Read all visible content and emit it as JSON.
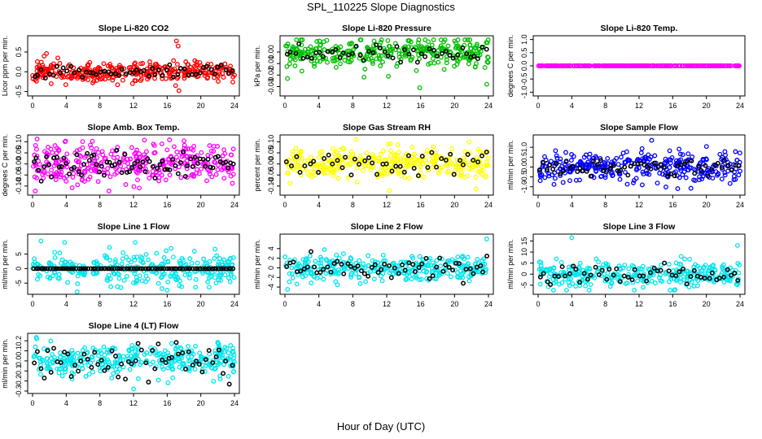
{
  "figure": {
    "title": "SPL_110225  Slope Diagnostics",
    "xlabel": "Hour of Day (UTC)"
  },
  "chart_data": [
    {
      "id": "co2",
      "type": "scatter",
      "title": "Slope Li-820 CO2",
      "ylabel": "Licor ppm per min.",
      "xlim": [
        0,
        24
      ],
      "ylim": [
        -0.55,
        0.85
      ],
      "xticks": [
        0,
        4,
        8,
        12,
        16,
        20,
        24
      ],
      "yticks": [
        -0.5,
        0,
        0.5
      ],
      "ytick_labels": [
        "-0.5",
        "0.0",
        "0.5"
      ],
      "color": "#ff0000",
      "spread": 0.13,
      "secondary_spread": 0.08,
      "dense_n": 330,
      "secondary_n": 55,
      "secondary_color": "#000000",
      "seed": 11,
      "outliers": [
        {
          "x": 17.1,
          "y": 0.78
        },
        {
          "x": 17.3,
          "y": 0.65
        },
        {
          "x": 17.0,
          "y": -0.35
        },
        {
          "x": 17.4,
          "y": -0.48
        },
        {
          "x": 3.0,
          "y": 0.35
        }
      ]
    },
    {
      "id": "pressure",
      "type": "scatter",
      "title": "Slope Li-820 Pressure",
      "ylabel": "kPa per min.",
      "xlim": [
        0,
        24
      ],
      "ylim": [
        -0.036,
        0.012
      ],
      "xticks": [
        0,
        4,
        8,
        12,
        16,
        20,
        24
      ],
      "yticks": [
        -0.03,
        -0.02,
        -0.01,
        0.0
      ],
      "ytick_labels": [
        "-0.03",
        "-0.02",
        "-0.01",
        "0.00"
      ],
      "color": "#00c000",
      "center": 0.0,
      "spread": 0.006,
      "secondary_spread": 0.004,
      "dense_n": 330,
      "secondary_n": 50,
      "secondary_color": "#000000",
      "seed": 23,
      "outliers": [
        {
          "x": 0.3,
          "y": -0.023
        },
        {
          "x": 12.2,
          "y": -0.021
        },
        {
          "x": 15.9,
          "y": -0.031
        },
        {
          "x": 23.8,
          "y": -0.028
        }
      ]
    },
    {
      "id": "temp",
      "type": "scatter",
      "title": "Slope Li-820 Temp.",
      "ylabel": "degrees C per min.",
      "xlim": [
        0,
        24
      ],
      "ylim": [
        -1.05,
        1.05
      ],
      "xticks": [
        0,
        4,
        8,
        12,
        16,
        20,
        24
      ],
      "yticks": [
        -1,
        -0.5,
        0,
        0.5,
        1
      ],
      "ytick_labels": [
        "-1.0",
        "-0.5",
        "0.0",
        "0.5",
        "1.0"
      ],
      "color": "#ff00ff",
      "spread": 0.0,
      "secondary_spread": 0.0,
      "dense_n": 300,
      "secondary_n": 0,
      "secondary_color": "#000000",
      "seed": 5,
      "outliers": []
    },
    {
      "id": "ambbox",
      "type": "scatter",
      "title": "Slope Amb. Box Temp.",
      "ylabel": "degrees C per min.",
      "xlim": [
        0,
        24
      ],
      "ylim": [
        -0.13,
        0.12
      ],
      "xticks": [
        0,
        4,
        8,
        12,
        16,
        20,
        24
      ],
      "yticks": [
        -0.1,
        -0.05,
        0,
        0.05,
        0.1
      ],
      "ytick_labels": [
        "-0.10",
        "-0.05",
        "0.00",
        "0.05",
        "0.10"
      ],
      "color": "#ff00ff",
      "spread": 0.048,
      "secondary_spread": 0.03,
      "dense_n": 340,
      "secondary_n": 80,
      "secondary_color": "#000000",
      "seed": 31,
      "outliers": []
    },
    {
      "id": "rh",
      "type": "scatter",
      "title": "Slope Gas Stream RH",
      "ylabel": "percent per min.",
      "xlim": [
        0,
        24
      ],
      "ylim": [
        -0.13,
        0.12
      ],
      "xticks": [
        0,
        4,
        8,
        12,
        16,
        20,
        24
      ],
      "yticks": [
        -0.1,
        -0.05,
        0,
        0.05,
        0.1
      ],
      "ytick_labels": [
        "-0.10",
        "-0.05",
        "0.00",
        "0.05",
        "0.10"
      ],
      "color": "#ffff00",
      "spread": 0.035,
      "secondary_spread": 0.03,
      "dense_n": 340,
      "secondary_n": 45,
      "secondary_color": "#000000",
      "seed": 41,
      "outliers": [
        {
          "x": 12.3,
          "y": -0.12
        },
        {
          "x": 8.4,
          "y": 0.11
        }
      ]
    },
    {
      "id": "sampleflow",
      "type": "scatter",
      "title": "Slope Sample Flow",
      "ylabel": "ml/min per min.",
      "xlim": [
        0,
        24
      ],
      "ylim": [
        -1.3,
        1.5
      ],
      "xticks": [
        0,
        4,
        8,
        12,
        16,
        20,
        24
      ],
      "yticks": [
        -1,
        -0.5,
        0,
        0.5,
        1
      ],
      "ytick_labels": [
        "-1.0",
        "-0.5",
        "0.0",
        "0.5",
        "1.0"
      ],
      "color": "#0000ff",
      "spread": 0.38,
      "secondary_spread": 0.25,
      "dense_n": 330,
      "secondary_n": 60,
      "secondary_color": "#000000",
      "seed": 53,
      "outliers": [
        {
          "x": 13.5,
          "y": 1.35
        },
        {
          "x": 16.6,
          "y": -1.1
        }
      ]
    },
    {
      "id": "line1",
      "type": "scatter",
      "title": "Slope Line 1 Flow",
      "ylabel": "ml/min per min.",
      "xlim": [
        0,
        24
      ],
      "ylim": [
        -8,
        11
      ],
      "xticks": [
        0,
        4,
        8,
        12,
        16,
        20,
        24
      ],
      "yticks": [
        -5,
        0,
        5
      ],
      "ytick_labels": [
        "-5",
        "0",
        "5"
      ],
      "color": "#00e5ee",
      "spread": 2.8,
      "secondary_spread": 0.0,
      "dense_n": 300,
      "secondary_n": 85,
      "secondary_color": "#000000",
      "seed": 61,
      "outliers": [
        {
          "x": 1.0,
          "y": 9.5
        },
        {
          "x": 3.8,
          "y": 9.0
        },
        {
          "x": 5.3,
          "y": -8.0
        },
        {
          "x": 12.2,
          "y": 9.0
        }
      ]
    },
    {
      "id": "line2",
      "type": "scatter",
      "title": "Slope Line 2 Flow",
      "ylabel": "ml/min per min.",
      "xlim": [
        0,
        24
      ],
      "ylim": [
        -5,
        6.5
      ],
      "xticks": [
        0,
        4,
        8,
        12,
        16,
        20,
        24
      ],
      "yticks": [
        -4,
        -2,
        0,
        2,
        4
      ],
      "ytick_labels": [
        "-4",
        "-2",
        "0",
        "2",
        "4"
      ],
      "color": "#00e5ee",
      "spread": 1.3,
      "secondary_spread": 1.4,
      "dense_n": 320,
      "secondary_n": 60,
      "secondary_color": "#000000",
      "seed": 71,
      "outliers": [
        {
          "x": 23.8,
          "y": 6.0
        },
        {
          "x": 0.3,
          "y": -4.5
        }
      ]
    },
    {
      "id": "line3",
      "type": "scatter",
      "title": "Slope Line 3 Flow",
      "ylabel": "ml/min per min.",
      "xlim": [
        0,
        24
      ],
      "ylim": [
        -8,
        17
      ],
      "xticks": [
        0,
        4,
        8,
        12,
        16,
        20,
        24
      ],
      "yticks": [
        -5,
        0,
        5,
        10,
        15
      ],
      "ytick_labels": [
        "-5",
        "0",
        "5",
        "10",
        "15"
      ],
      "color": "#00e5ee",
      "spread": 2.8,
      "secondary_spread": 2.5,
      "dense_n": 320,
      "secondary_n": 55,
      "secondary_color": "#000000",
      "seed": 83,
      "outliers": [
        {
          "x": 4.0,
          "y": 16.5
        },
        {
          "x": 23.7,
          "y": 13.0
        },
        {
          "x": 16.3,
          "y": -7.0
        }
      ]
    },
    {
      "id": "line4",
      "type": "scatter",
      "title": "Slope Line 4 (LT) Flow",
      "ylabel": "ml/min per min.",
      "xlim": [
        0,
        24
      ],
      "ylim": [
        -0.3,
        0.25
      ],
      "xticks": [
        0,
        4,
        8,
        12,
        16,
        20,
        24
      ],
      "yticks": [
        -0.3,
        -0.2,
        -0.1,
        0,
        0.1,
        0.2
      ],
      "ytick_labels": [
        "-0.3",
        "-0.2",
        "-0.1",
        "0.0",
        "0.1",
        "0.2"
      ],
      "color": "#00e5ee",
      "spread": 0.085,
      "secondary_spread": 0.09,
      "dense_n": 340,
      "secondary_n": 60,
      "secondary_color": "#000000",
      "seed": 97,
      "outliers": [
        {
          "x": 12.0,
          "y": -0.28
        },
        {
          "x": 0.5,
          "y": 0.22
        }
      ]
    }
  ]
}
